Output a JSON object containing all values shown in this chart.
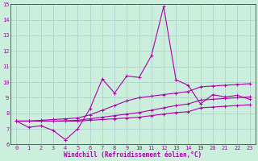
{
  "xlabel": "Windchill (Refroidissement éolien,°C)",
  "background_color": "#cceedd",
  "grid_color": "#aacccc",
  "line_color": "#aa00aa",
  "markersize": 3,
  "linewidth": 0.8,
  "ylim": [
    6,
    15
  ],
  "y_ticks": [
    6,
    7,
    8,
    9,
    10,
    11,
    12,
    13,
    14,
    15
  ],
  "x_ticks": [
    0,
    1,
    2,
    3,
    4,
    5,
    6,
    7,
    8,
    9,
    10,
    11,
    12,
    13,
    14,
    19,
    20,
    21,
    22,
    23
  ],
  "series1_x": [
    0,
    1,
    2,
    3,
    4,
    5,
    6,
    7,
    8,
    9,
    10,
    11,
    12,
    13,
    14,
    19,
    20,
    21,
    22,
    23
  ],
  "series1_y": [
    7.5,
    7.1,
    7.2,
    6.9,
    6.3,
    7.0,
    8.3,
    10.2,
    9.3,
    10.4,
    10.3,
    11.7,
    14.85,
    10.15,
    9.8,
    8.6,
    9.2,
    9.05,
    9.15,
    8.9
  ],
  "series2_x": [
    0,
    1,
    2,
    3,
    4,
    5,
    6,
    7,
    8,
    9,
    10,
    11,
    12,
    13,
    14,
    19,
    20,
    21,
    22,
    23
  ],
  "series2_y": [
    7.5,
    7.5,
    7.55,
    7.6,
    7.65,
    7.7,
    7.9,
    8.2,
    8.5,
    8.8,
    9.0,
    9.1,
    9.2,
    9.3,
    9.4,
    9.7,
    9.75,
    9.8,
    9.85,
    9.9
  ],
  "series3_x": [
    0,
    1,
    2,
    3,
    4,
    5,
    6,
    7,
    8,
    9,
    10,
    11,
    12,
    13,
    14,
    19,
    20,
    21,
    22,
    23
  ],
  "series3_y": [
    7.5,
    7.5,
    7.5,
    7.5,
    7.52,
    7.55,
    7.65,
    7.75,
    7.85,
    7.95,
    8.05,
    8.2,
    8.35,
    8.5,
    8.6,
    8.85,
    8.9,
    8.95,
    9.0,
    9.05
  ],
  "series4_x": [
    0,
    1,
    2,
    3,
    4,
    5,
    6,
    7,
    8,
    9,
    10,
    11,
    12,
    13,
    14,
    19,
    20,
    21,
    22,
    23
  ],
  "series4_y": [
    7.5,
    7.5,
    7.5,
    7.5,
    7.5,
    7.5,
    7.55,
    7.6,
    7.65,
    7.7,
    7.75,
    7.85,
    7.95,
    8.05,
    8.1,
    8.35,
    8.4,
    8.45,
    8.5,
    8.55
  ]
}
